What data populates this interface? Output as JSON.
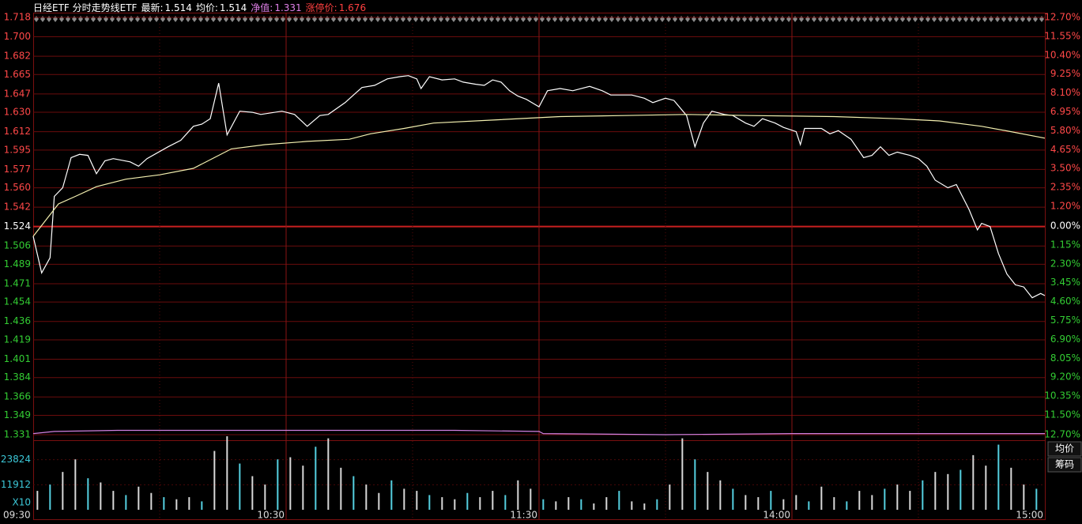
{
  "chart_data": {
    "type": "line",
    "title": "日经ETF 分时走势线ETF",
    "readouts": [
      {
        "label": "最新:",
        "value": 1.514,
        "color": "#ffffff"
      },
      {
        "label": "均价:",
        "value": 1.514,
        "color": "#ffffff"
      },
      {
        "label": "净值:",
        "value": 1.331,
        "color": "#e080e8"
      },
      {
        "label": "涨停价:",
        "value": 1.676,
        "color": "#ff4040"
      }
    ],
    "xlim": [
      0,
      240
    ],
    "xticks": [
      {
        "value": 0,
        "label": "09:30"
      },
      {
        "value": 60,
        "label": "10:30"
      },
      {
        "value": 120,
        "label": "11:30"
      },
      {
        "value": 180,
        "label": "14:00"
      },
      {
        "value": 240,
        "label": "15:00"
      }
    ],
    "ylim": [
      1.331,
      1.718
    ],
    "yticks": [
      1.718,
      {
        "value": 1.7,
        "label": "1.700"
      },
      1.682,
      1.665,
      1.647,
      {
        "value": 1.63,
        "label": "1.630"
      },
      1.612,
      1.595,
      1.577,
      {
        "value": 1.56,
        "label": "1.560"
      },
      1.542,
      1.524,
      1.506,
      1.489,
      1.471,
      1.454,
      1.436,
      1.419,
      1.401,
      1.384,
      1.366,
      1.349,
      1.331
    ],
    "y2lim": [
      -12.7,
      12.7
    ],
    "y2ticks": [
      {
        "value": 12.7,
        "label": "12.70%"
      },
      {
        "value": 11.55,
        "label": "11.55%"
      },
      {
        "value": 10.4,
        "label": "10.40%"
      },
      {
        "value": 9.25,
        "label": "9.25%"
      },
      {
        "value": 8.1,
        "label": "8.10%"
      },
      {
        "value": 6.95,
        "label": "6.95%"
      },
      {
        "value": 5.8,
        "label": "5.80%"
      },
      {
        "value": 4.65,
        "label": "4.65%"
      },
      {
        "value": 3.5,
        "label": "3.50%"
      },
      {
        "value": 2.35,
        "label": "2.35%"
      },
      {
        "value": 1.2,
        "label": "1.20%"
      },
      {
        "value": 0,
        "label": "0.00%"
      },
      {
        "value": -1.15,
        "label": "1.15%"
      },
      {
        "value": -2.3,
        "label": "2.30%"
      },
      {
        "value": -3.45,
        "label": "3.45%"
      },
      {
        "value": -4.6,
        "label": "4.60%"
      },
      {
        "value": -5.75,
        "label": "5.75%"
      },
      {
        "value": -6.9,
        "label": "6.90%"
      },
      {
        "value": -8.05,
        "label": "8.05%"
      },
      {
        "value": -9.2,
        "label": "9.20%"
      },
      {
        "value": -10.35,
        "label": "10.35%"
      },
      {
        "value": -11.5,
        "label": "11.50%"
      },
      {
        "value": -12.7,
        "label": "12.70%"
      }
    ],
    "grid": true,
    "series": [
      {
        "color": "#ffffff",
        "x": [
          0,
          2,
          4,
          5,
          7,
          9,
          11,
          13,
          15,
          17,
          19,
          23,
          25,
          27,
          32,
          35,
          38,
          40,
          42,
          44,
          46,
          49,
          52,
          54,
          59,
          62,
          65,
          68,
          70,
          74,
          76,
          78,
          81,
          84,
          87,
          89,
          91,
          92,
          94,
          97,
          100,
          102,
          105,
          107,
          109,
          111,
          113,
          115,
          117,
          120,
          122,
          125,
          128,
          132,
          135,
          137,
          142,
          145,
          147,
          150,
          152,
          155,
          157,
          159,
          161,
          164,
          166,
          169,
          171,
          173,
          176,
          178,
          181,
          182,
          183,
          187,
          189,
          191,
          194,
          197,
          199,
          201,
          203,
          205,
          208,
          210,
          212,
          214,
          217,
          219,
          222,
          224,
          225,
          227,
          229,
          231,
          233,
          235,
          237,
          239,
          240
        ],
        "values": [
          1.515,
          1.481,
          1.495,
          1.552,
          1.56,
          1.588,
          1.591,
          1.59,
          1.573,
          1.585,
          1.587,
          1.584,
          1.58,
          1.587,
          1.598,
          1.604,
          1.617,
          1.619,
          1.624,
          1.657,
          1.609,
          1.631,
          1.63,
          1.628,
          1.631,
          1.628,
          1.617,
          1.627,
          1.628,
          1.639,
          1.646,
          1.653,
          1.655,
          1.661,
          1.663,
          1.664,
          1.661,
          1.652,
          1.663,
          1.66,
          1.661,
          1.658,
          1.656,
          1.655,
          1.66,
          1.658,
          1.65,
          1.645,
          1.642,
          1.635,
          1.65,
          1.652,
          1.65,
          1.654,
          1.65,
          1.646,
          1.646,
          1.643,
          1.639,
          1.643,
          1.641,
          1.627,
          1.598,
          1.62,
          1.631,
          1.628,
          1.627,
          1.62,
          1.617,
          1.624,
          1.62,
          1.616,
          1.612,
          1.6,
          1.615,
          1.615,
          1.61,
          1.613,
          1.605,
          1.588,
          1.59,
          1.598,
          1.59,
          1.593,
          1.59,
          1.587,
          1.58,
          1.567,
          1.56,
          1.563,
          1.54,
          1.521,
          1.527,
          1.524,
          1.499,
          1.48,
          1.47,
          1.468,
          1.458,
          1.462,
          1.46
        ]
      },
      {
        "color": "#f4f0b0",
        "x": [
          0,
          3,
          6,
          10,
          15,
          22,
          30,
          38,
          43,
          47,
          55,
          65,
          75,
          80,
          88,
          95,
          110,
          125,
          140,
          155,
          170,
          190,
          205,
          215,
          225,
          232,
          240
        ],
        "values": [
          1.515,
          1.53,
          1.545,
          1.552,
          1.561,
          1.568,
          1.572,
          1.578,
          1.588,
          1.596,
          1.6,
          1.603,
          1.605,
          1.61,
          1.615,
          1.62,
          1.623,
          1.626,
          1.627,
          1.628,
          1.627,
          1.626,
          1.624,
          1.622,
          1.617,
          1.612,
          1.606
        ]
      },
      {
        "color": "#d080e0",
        "x": [
          0,
          5,
          20,
          40,
          60,
          80,
          100,
          120,
          121,
          150,
          180,
          210,
          240
        ],
        "values": [
          1.332,
          1.334,
          1.335,
          1.335,
          1.335,
          1.335,
          1.335,
          1.334,
          1.332,
          1.331,
          1.332,
          1.332,
          1.332
        ]
      }
    ],
    "volume": {
      "color": "#d8d8d8",
      "unit": "X10",
      "ylim": [
        0,
        35736
      ],
      "yticks": [
        23824,
        11912
      ],
      "x": [
        1,
        4,
        7,
        10,
        13,
        16,
        19,
        22,
        25,
        28,
        31,
        34,
        37,
        40,
        43,
        46,
        49,
        52,
        55,
        58,
        61,
        64,
        67,
        70,
        73,
        76,
        79,
        82,
        85,
        88,
        91,
        94,
        97,
        100,
        103,
        106,
        109,
        112,
        115,
        118,
        121,
        124,
        127,
        130,
        133,
        136,
        139,
        142,
        145,
        148,
        151,
        154,
        157,
        160,
        163,
        166,
        169,
        172,
        175,
        178,
        181,
        184,
        187,
        190,
        193,
        196,
        199,
        202,
        205,
        208,
        211,
        214,
        217,
        220,
        223,
        226,
        229,
        232,
        235,
        238
      ],
      "values": [
        9000,
        12000,
        18000,
        24000,
        15000,
        13000,
        9000,
        7000,
        11000,
        8000,
        6000,
        5000,
        6000,
        4000,
        28000,
        35000,
        22000,
        16000,
        12000,
        24000,
        25000,
        21000,
        30000,
        34000,
        20000,
        16000,
        12000,
        8000,
        14000,
        10000,
        9000,
        7000,
        6000,
        5000,
        8000,
        6000,
        9000,
        7000,
        14000,
        10000,
        5000,
        4000,
        6000,
        5000,
        3000,
        6000,
        9000,
        4000,
        3000,
        5000,
        12000,
        34000,
        24000,
        18000,
        14000,
        10000,
        7000,
        6000,
        9000,
        5000,
        7000,
        4000,
        11000,
        6000,
        4000,
        9000,
        7000,
        10000,
        12000,
        9000,
        14000,
        18000,
        17000,
        19000,
        26000,
        21000,
        31000,
        20000,
        12000,
        10000
      ]
    },
    "buttons": [
      "均价",
      "筹码"
    ]
  }
}
